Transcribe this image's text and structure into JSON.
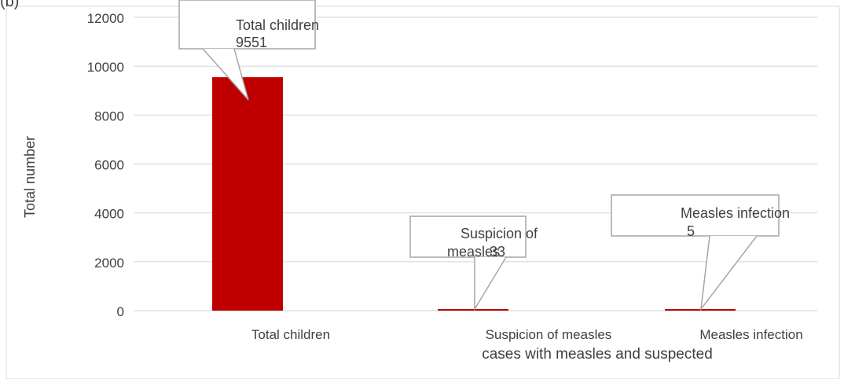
{
  "panel_label": "(b)",
  "chart_data": {
    "type": "bar",
    "title": "",
    "xlabel": "cases with measles and suspected",
    "ylabel": "Total number",
    "ylim": [
      0,
      12000
    ],
    "yticks": [
      0,
      2000,
      4000,
      6000,
      8000,
      10000,
      12000
    ],
    "grid": true,
    "legend": "none",
    "categories": [
      "Total children",
      "Suspicion of measles",
      "Measles infection"
    ],
    "values": [
      9551,
      33,
      5
    ],
    "bar_color": "#C00000",
    "callouts": [
      {
        "category": "Total children",
        "lines": [
          "Total children",
          "9551"
        ]
      },
      {
        "category": "Suspicion of measles",
        "lines": [
          "Suspicion of",
          "measles",
          "33"
        ]
      },
      {
        "category": "Measles infection",
        "lines": [
          "Measles infection",
          "5"
        ]
      }
    ]
  }
}
